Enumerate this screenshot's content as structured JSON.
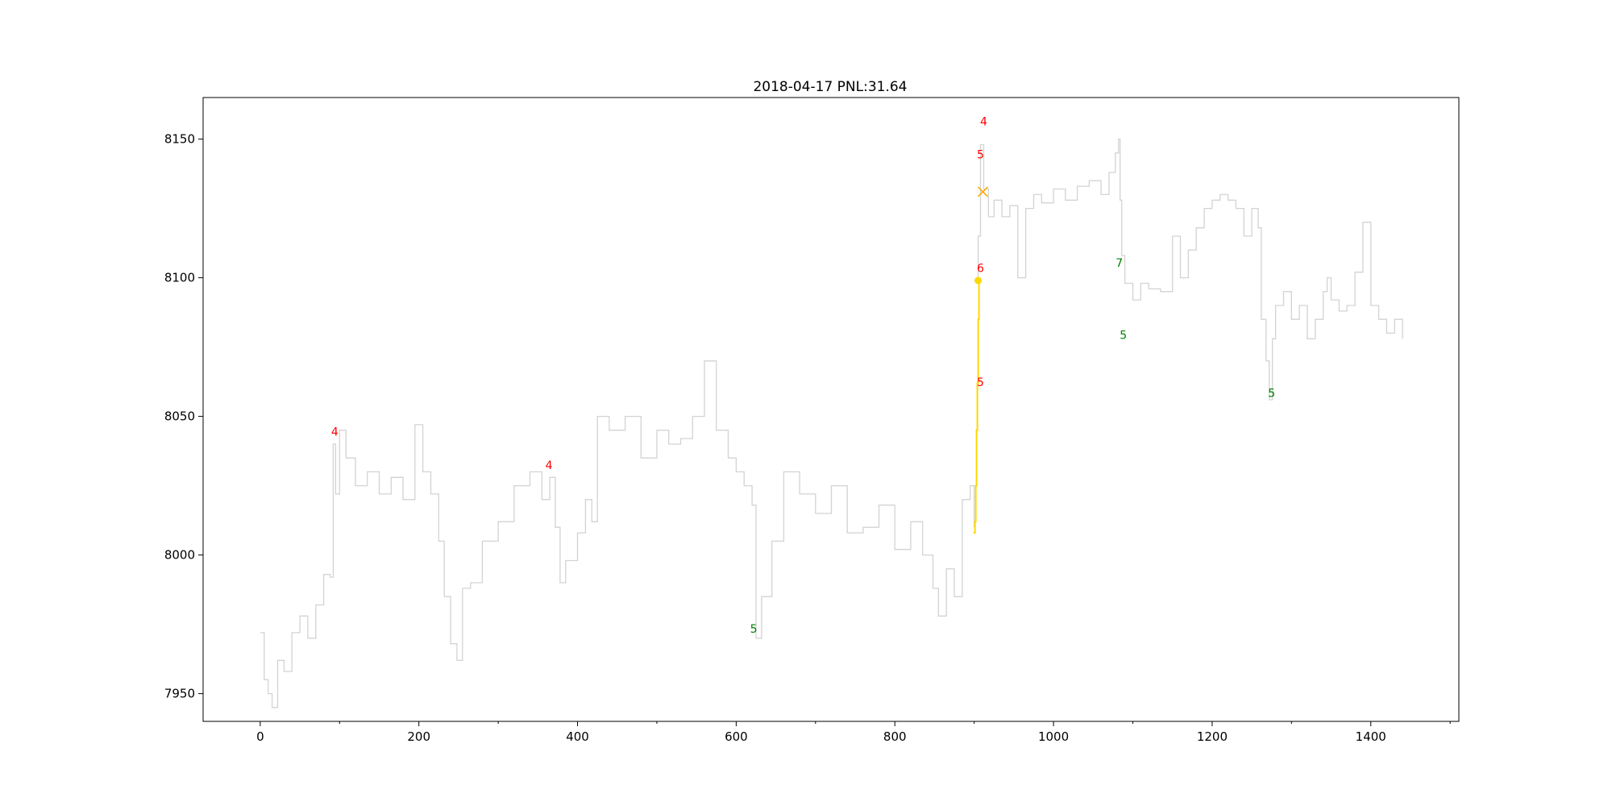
{
  "chart_data": {
    "type": "line",
    "title": "2018-04-17 PNL:31.64",
    "xlabel": "",
    "ylabel": "",
    "xlim": [
      -72,
      1511
    ],
    "ylim": [
      7940,
      8165
    ],
    "x_ticks": [
      0,
      200,
      400,
      600,
      800,
      1000,
      1200,
      1400
    ],
    "x_tick_labels": [
      "0",
      "200",
      "400",
      "600",
      "800",
      "1000",
      "1200",
      "1400"
    ],
    "y_ticks": [
      7950,
      8000,
      8050,
      8100,
      8150
    ],
    "y_tick_labels": [
      "7950",
      "8000",
      "8050",
      "8100",
      "8150"
    ],
    "grid": false,
    "colors": {
      "price": "#d3d3d3",
      "trade": "#ffd700",
      "exit_marker": "#ffa500",
      "sell_label": "#ff0000",
      "buy_label": "#008000",
      "axes": "#000000"
    },
    "series": [
      {
        "color": "#d3d3d3",
        "x": [
          0,
          5,
          10,
          15,
          22,
          30,
          40,
          50,
          60,
          70,
          80,
          88,
          92,
          95,
          100,
          108,
          120,
          135,
          150,
          165,
          180,
          195,
          205,
          215,
          225,
          232,
          240,
          248,
          255,
          265,
          280,
          300,
          320,
          340,
          355,
          365,
          372,
          378,
          385,
          400,
          410,
          418,
          425,
          440,
          460,
          480,
          500,
          515,
          530,
          545,
          560,
          575,
          590,
          600,
          610,
          620,
          625,
          632,
          645,
          660,
          680,
          700,
          720,
          740,
          760,
          780,
          800,
          820,
          835,
          848,
          855,
          865,
          875,
          885,
          895,
          900
        ],
        "y": [
          7972,
          7955,
          7950,
          7945,
          7962,
          7958,
          7972,
          7978,
          7970,
          7982,
          7993,
          7992,
          8040,
          8022,
          8045,
          8035,
          8025,
          8030,
          8022,
          8028,
          8020,
          8047,
          8030,
          8022,
          8005,
          7985,
          7968,
          7962,
          7988,
          7990,
          8005,
          8012,
          8025,
          8030,
          8020,
          8028,
          8010,
          7990,
          7998,
          8008,
          8020,
          8012,
          8050,
          8045,
          8050,
          8035,
          8045,
          8040,
          8042,
          8050,
          8070,
          8045,
          8035,
          8030,
          8025,
          8018,
          7970,
          7985,
          8005,
          8030,
          8022,
          8015,
          8025,
          8008,
          8010,
          8018,
          8002,
          8012,
          8000,
          7988,
          7978,
          7995,
          7985,
          8020,
          8025,
          8010
        ]
      },
      {
        "color": "#d3d3d3",
        "x": [
          900,
          905,
          908,
          912,
          918,
          925,
          935,
          945,
          955,
          965,
          975,
          985,
          1000,
          1015,
          1030,
          1045,
          1060,
          1070,
          1078,
          1082,
          1084,
          1086,
          1090,
          1100,
          1110,
          1120,
          1135,
          1150,
          1160,
          1170,
          1180,
          1190,
          1200,
          1210,
          1220,
          1230,
          1240,
          1250,
          1258,
          1262,
          1268,
          1272,
          1276,
          1280,
          1290,
          1300,
          1310,
          1320,
          1330,
          1340,
          1345,
          1350,
          1360,
          1370,
          1380,
          1390,
          1400,
          1410,
          1420,
          1430,
          1440
        ],
        "y": [
          8099,
          8115,
          8148,
          8132,
          8122,
          8128,
          8122,
          8126,
          8100,
          8125,
          8130,
          8127,
          8132,
          8128,
          8133,
          8135,
          8130,
          8138,
          8145,
          8150,
          8128,
          8108,
          8098,
          8092,
          8098,
          8096,
          8095,
          8115,
          8100,
          8110,
          8118,
          8125,
          8128,
          8130,
          8128,
          8125,
          8115,
          8125,
          8118,
          8085,
          8070,
          8056,
          8078,
          8090,
          8095,
          8085,
          8090,
          8078,
          8085,
          8095,
          8100,
          8092,
          8088,
          8090,
          8102,
          8120,
          8090,
          8085,
          8080,
          8085,
          8078
        ]
      },
      {
        "color": "#ffd700",
        "x": [
          899,
          901,
          902,
          903,
          904,
          905,
          906
        ],
        "y": [
          8008,
          8012,
          8025,
          8045,
          8062,
          8085,
          8099
        ]
      }
    ],
    "markers": [
      {
        "type": "dot",
        "x": 905,
        "y": 8099,
        "color": "#ffd700"
      },
      {
        "type": "x",
        "x": 911,
        "y": 8131,
        "color": "#ffa500"
      }
    ],
    "annotations": [
      {
        "text": "4",
        "x": 94,
        "y": 8043,
        "color": "#ff0000"
      },
      {
        "text": "4",
        "x": 364,
        "y": 8031,
        "color": "#ff0000"
      },
      {
        "text": "5",
        "x": 622,
        "y": 7972,
        "color": "#008000"
      },
      {
        "text": "4",
        "x": 912,
        "y": 8155,
        "color": "#ff0000"
      },
      {
        "text": "5",
        "x": 908,
        "y": 8143,
        "color": "#ff0000"
      },
      {
        "text": "6",
        "x": 908,
        "y": 8102,
        "color": "#ff0000"
      },
      {
        "text": "5",
        "x": 908,
        "y": 8061,
        "color": "#ff0000"
      },
      {
        "text": "7",
        "x": 1083,
        "y": 8104,
        "color": "#008000"
      },
      {
        "text": "5",
        "x": 1088,
        "y": 8078,
        "color": "#008000"
      },
      {
        "text": "5",
        "x": 1275,
        "y": 8057,
        "color": "#008000"
      }
    ]
  }
}
